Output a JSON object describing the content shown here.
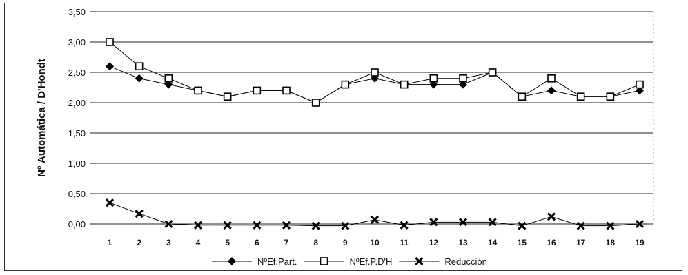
{
  "chart_data": {
    "type": "line",
    "title": "",
    "xlabel": "",
    "ylabel": "Nº Automática / D'Hondt",
    "categories": [
      "1",
      "2",
      "3",
      "4",
      "5",
      "6",
      "7",
      "8",
      "9",
      "10",
      "11",
      "12",
      "13",
      "14",
      "15",
      "16",
      "17",
      "18",
      "19"
    ],
    "ylim": [
      0,
      3.5
    ],
    "yticks": [
      "0,00",
      "0,50",
      "1,00",
      "1,50",
      "2,00",
      "2,50",
      "3,00",
      "3,50"
    ],
    "grid": true,
    "legend_position": "bottom",
    "series": [
      {
        "name": "NºEf.Part.",
        "marker": "filled-diamond",
        "color": "#000000",
        "values": [
          2.6,
          2.4,
          2.3,
          2.2,
          2.1,
          2.2,
          2.2,
          2.0,
          2.3,
          2.4,
          2.3,
          2.3,
          2.3,
          2.5,
          2.1,
          2.2,
          2.1,
          2.1,
          2.2
        ]
      },
      {
        "name": "NºEf.P.D'H",
        "marker": "open-square",
        "color": "#000000",
        "values": [
          3.0,
          2.6,
          2.4,
          2.2,
          2.1,
          2.2,
          2.2,
          2.0,
          2.3,
          2.5,
          2.3,
          2.4,
          2.4,
          2.5,
          2.1,
          2.4,
          2.1,
          2.1,
          2.3
        ]
      },
      {
        "name": "Reducción",
        "marker": "x",
        "color": "#000000",
        "values": [
          0.35,
          0.17,
          0.0,
          -0.02,
          -0.02,
          -0.02,
          -0.02,
          -0.03,
          -0.03,
          0.07,
          -0.02,
          0.03,
          0.03,
          0.03,
          -0.03,
          0.12,
          -0.03,
          -0.03,
          0.0
        ]
      }
    ]
  }
}
